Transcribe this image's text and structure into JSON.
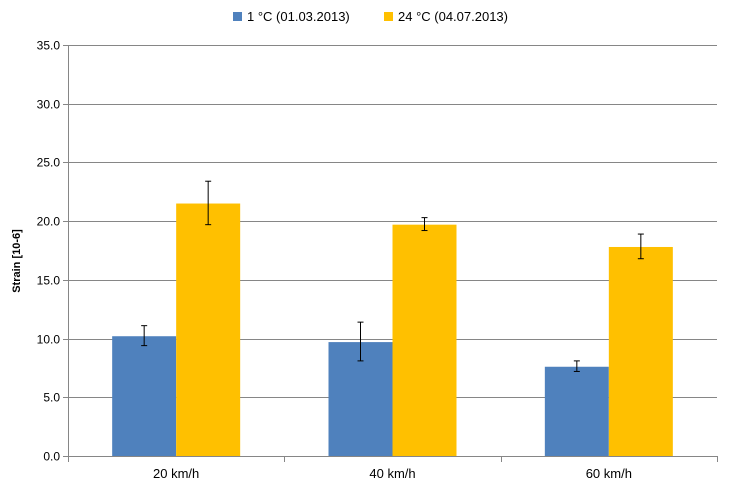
{
  "chart_data": {
    "type": "bar",
    "categories": [
      "20 km/h",
      "40 km/h",
      "60 km/h"
    ],
    "series": [
      {
        "name": "1 °C (01.03.2013)",
        "color": "#4f81bd",
        "values": [
          10.2,
          9.7,
          7.6
        ],
        "error_low": [
          9.4,
          8.1,
          7.2
        ],
        "error_high": [
          11.1,
          11.4,
          8.1
        ]
      },
      {
        "name": "24 °C (04.07.2013)",
        "color": "#ffc000",
        "values": [
          21.5,
          19.7,
          17.8
        ],
        "error_low": [
          19.7,
          19.2,
          16.8
        ],
        "error_high": [
          23.4,
          20.3,
          18.9
        ]
      }
    ],
    "ylabel": "Strain [10-6]",
    "xlabel": "",
    "ylim": [
      0,
      35
    ],
    "yticks": [
      "0.0",
      "5.0",
      "10.0",
      "15.0",
      "20.0",
      "25.0",
      "30.0",
      "35.0"
    ],
    "grid": true,
    "legend": "top-center"
  }
}
